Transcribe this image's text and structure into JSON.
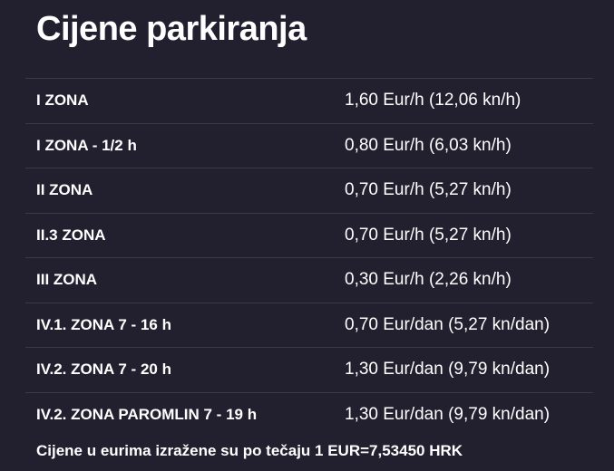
{
  "page": {
    "title": "Cijene parkiranja",
    "footnote": "Cijene u eurima izražene su po tečaju 1 EUR=7,53450 HRK"
  },
  "prices": [
    {
      "zone": "I ZONA",
      "price": "1,60 Eur/h (12,06 kn/h)"
    },
    {
      "zone": "I ZONA - 1/2 h",
      "price": "0,80 Eur/h (6,03 kn/h)"
    },
    {
      "zone": "II ZONA",
      "price": "0,70 Eur/h (5,27 kn/h)"
    },
    {
      "zone": "II.3 ZONA",
      "price": "0,70 Eur/h (5,27 kn/h)"
    },
    {
      "zone": "III ZONA",
      "price": "0,30 Eur/h (2,26 kn/h)"
    },
    {
      "zone": "IV.1. ZONA 7 - 16 h",
      "price": "0,70 Eur/dan (5,27 kn/dan)"
    },
    {
      "zone": "IV.2. ZONA 7 - 20 h",
      "price": "1,30 Eur/dan (9,79 kn/dan)"
    },
    {
      "zone": "IV.2. ZONA PAROMLIN 7 - 19 h",
      "price": "1,30 Eur/dan (9,79 kn/dan)"
    }
  ]
}
